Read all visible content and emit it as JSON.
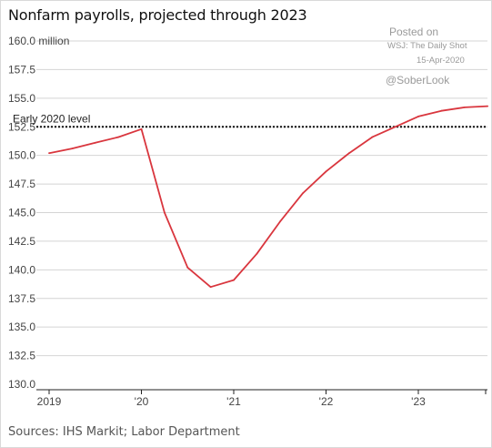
{
  "chart": {
    "title": "Nonfarm payrolls, projected through 2023",
    "source": "Sources: IHS Markit; Labor Department"
  },
  "watermark": {
    "line1": "Posted on",
    "line2": "WSJ: The Daily Shot",
    "line3": "15-Apr-2020",
    "line4": "@SoberLook"
  },
  "chart_data": {
    "type": "line",
    "title": "Nonfarm payrolls, projected through 2023",
    "ylabel": "",
    "y_unit": "million",
    "ylim": [
      130.0,
      160.0
    ],
    "y_ticks": [
      130.0,
      132.5,
      135.0,
      137.5,
      140.0,
      142.5,
      145.0,
      147.5,
      150.0,
      152.5,
      155.0,
      157.5,
      160.0
    ],
    "y_tick_labels": [
      "130.0",
      "132.5",
      "135.0",
      "137.5",
      "140.0",
      "142.5",
      "145.0",
      "147.5",
      "150.0",
      "152.5",
      "155.0",
      "157.5",
      "160.0 million"
    ],
    "x_ticks": [
      2019,
      2020,
      2021,
      2022,
      2023
    ],
    "x_tick_labels": [
      "2019",
      "'20",
      "'21",
      "'22",
      "'23"
    ],
    "xlim": [
      2019.0,
      2023.8
    ],
    "grid": true,
    "series": [
      {
        "color": "#d9363e",
        "x": [
          2019.0,
          2019.25,
          2019.5,
          2019.75,
          2020.0,
          2020.25,
          2020.5,
          2020.75,
          2021.0,
          2021.25,
          2021.5,
          2021.75,
          2022.0,
          2022.25,
          2022.5,
          2022.75,
          2023.0,
          2023.25,
          2023.5,
          2023.75
        ],
        "y": [
          150.2,
          150.6,
          151.1,
          151.6,
          152.3,
          145.0,
          140.2,
          138.5,
          139.1,
          141.4,
          144.2,
          146.7,
          148.6,
          150.2,
          151.6,
          152.5,
          153.4,
          153.9,
          154.2,
          154.3
        ]
      }
    ],
    "reference_line": {
      "value": 152.5,
      "label": "Early 2020 level",
      "style": "dotted",
      "color": "#111111"
    }
  }
}
